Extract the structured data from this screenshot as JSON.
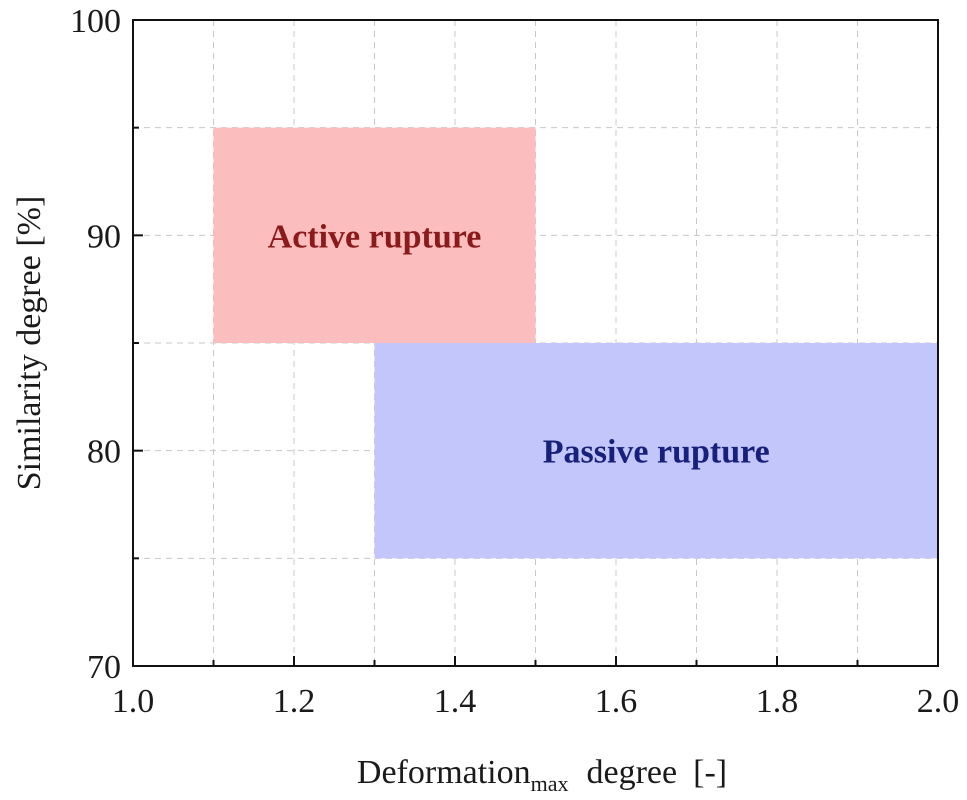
{
  "chart_data": {
    "type": "area",
    "title": "",
    "xlabel_main": "Deformation",
    "xlabel_sub": "max",
    "xlabel_rest": "degree",
    "xlabel_unit": "[-]",
    "ylabel": "Similarity degree [%]",
    "xlim": [
      1.0,
      2.0
    ],
    "ylim": [
      70,
      100
    ],
    "x_ticks": [
      "1.0",
      "1.2",
      "1.4",
      "1.6",
      "1.8",
      "2.0"
    ],
    "y_ticks": [
      "70",
      "80",
      "90",
      "100"
    ],
    "grid": true,
    "regions": [
      {
        "name": "Active rupture",
        "x": [
          1.1,
          1.5
        ],
        "y": [
          85,
          95
        ],
        "fill": "#fbbdbe",
        "label_color": "#8b1a1a"
      },
      {
        "name": "Passive rupture",
        "x": [
          1.3,
          2.0
        ],
        "y": [
          75,
          85
        ],
        "fill": "#c3c6fb",
        "label_color": "#17207a"
      }
    ]
  }
}
